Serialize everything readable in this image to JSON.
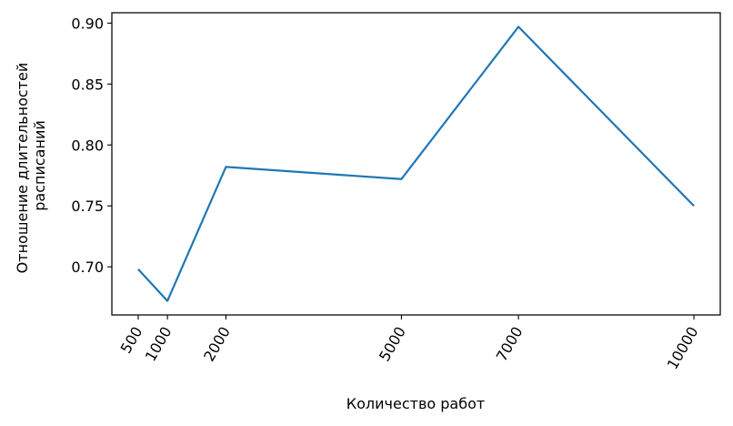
{
  "chart_data": {
    "type": "line",
    "title": "",
    "xlabel": "Количество работ",
    "ylabel_lines": [
      "Отношение длительностей",
      "расписаний"
    ],
    "x": [
      500,
      1000,
      2000,
      5000,
      7000,
      10000
    ],
    "series": [
      {
        "name": "",
        "color": "#1f77b4",
        "values": [
          0.698,
          0.672,
          0.782,
          0.772,
          0.897,
          0.75
        ]
      }
    ],
    "xticks": [
      "500",
      "1000",
      "2000",
      "5000",
      "7000",
      "10000"
    ],
    "yticks": [
      "0.70",
      "0.75",
      "0.80",
      "0.85",
      "0.90"
    ],
    "xlim": [
      50,
      10450
    ],
    "ylim": [
      0.6605,
      0.9085
    ],
    "grid": false,
    "legend": "none"
  }
}
